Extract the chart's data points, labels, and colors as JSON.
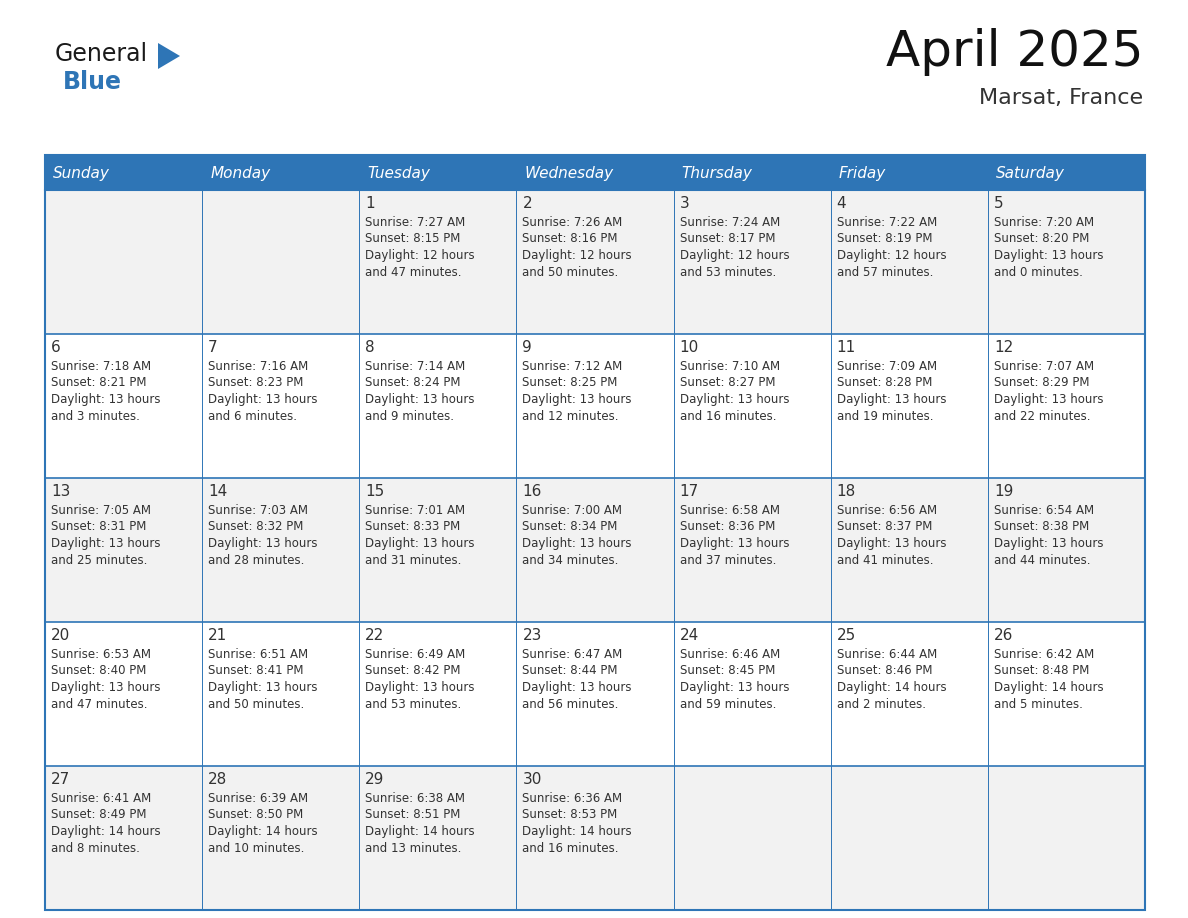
{
  "title": "April 2025",
  "subtitle": "Marsat, France",
  "header_color": "#2E75B6",
  "header_text_color": "#FFFFFF",
  "cell_bg_color": "#FFFFFF",
  "alt_row_color": "#F2F2F2",
  "cell_text_color": "#333333",
  "border_color": "#2E75B6",
  "thin_border_color": "#5B9BD5",
  "day_headers": [
    "Sunday",
    "Monday",
    "Tuesday",
    "Wednesday",
    "Thursday",
    "Friday",
    "Saturday"
  ],
  "weeks": [
    [
      {
        "day": "",
        "text": ""
      },
      {
        "day": "",
        "text": ""
      },
      {
        "day": "1",
        "text": "Sunrise: 7:27 AM\nSunset: 8:15 PM\nDaylight: 12 hours\nand 47 minutes."
      },
      {
        "day": "2",
        "text": "Sunrise: 7:26 AM\nSunset: 8:16 PM\nDaylight: 12 hours\nand 50 minutes."
      },
      {
        "day": "3",
        "text": "Sunrise: 7:24 AM\nSunset: 8:17 PM\nDaylight: 12 hours\nand 53 minutes."
      },
      {
        "day": "4",
        "text": "Sunrise: 7:22 AM\nSunset: 8:19 PM\nDaylight: 12 hours\nand 57 minutes."
      },
      {
        "day": "5",
        "text": "Sunrise: 7:20 AM\nSunset: 8:20 PM\nDaylight: 13 hours\nand 0 minutes."
      }
    ],
    [
      {
        "day": "6",
        "text": "Sunrise: 7:18 AM\nSunset: 8:21 PM\nDaylight: 13 hours\nand 3 minutes."
      },
      {
        "day": "7",
        "text": "Sunrise: 7:16 AM\nSunset: 8:23 PM\nDaylight: 13 hours\nand 6 minutes."
      },
      {
        "day": "8",
        "text": "Sunrise: 7:14 AM\nSunset: 8:24 PM\nDaylight: 13 hours\nand 9 minutes."
      },
      {
        "day": "9",
        "text": "Sunrise: 7:12 AM\nSunset: 8:25 PM\nDaylight: 13 hours\nand 12 minutes."
      },
      {
        "day": "10",
        "text": "Sunrise: 7:10 AM\nSunset: 8:27 PM\nDaylight: 13 hours\nand 16 minutes."
      },
      {
        "day": "11",
        "text": "Sunrise: 7:09 AM\nSunset: 8:28 PM\nDaylight: 13 hours\nand 19 minutes."
      },
      {
        "day": "12",
        "text": "Sunrise: 7:07 AM\nSunset: 8:29 PM\nDaylight: 13 hours\nand 22 minutes."
      }
    ],
    [
      {
        "day": "13",
        "text": "Sunrise: 7:05 AM\nSunset: 8:31 PM\nDaylight: 13 hours\nand 25 minutes."
      },
      {
        "day": "14",
        "text": "Sunrise: 7:03 AM\nSunset: 8:32 PM\nDaylight: 13 hours\nand 28 minutes."
      },
      {
        "day": "15",
        "text": "Sunrise: 7:01 AM\nSunset: 8:33 PM\nDaylight: 13 hours\nand 31 minutes."
      },
      {
        "day": "16",
        "text": "Sunrise: 7:00 AM\nSunset: 8:34 PM\nDaylight: 13 hours\nand 34 minutes."
      },
      {
        "day": "17",
        "text": "Sunrise: 6:58 AM\nSunset: 8:36 PM\nDaylight: 13 hours\nand 37 minutes."
      },
      {
        "day": "18",
        "text": "Sunrise: 6:56 AM\nSunset: 8:37 PM\nDaylight: 13 hours\nand 41 minutes."
      },
      {
        "day": "19",
        "text": "Sunrise: 6:54 AM\nSunset: 8:38 PM\nDaylight: 13 hours\nand 44 minutes."
      }
    ],
    [
      {
        "day": "20",
        "text": "Sunrise: 6:53 AM\nSunset: 8:40 PM\nDaylight: 13 hours\nand 47 minutes."
      },
      {
        "day": "21",
        "text": "Sunrise: 6:51 AM\nSunset: 8:41 PM\nDaylight: 13 hours\nand 50 minutes."
      },
      {
        "day": "22",
        "text": "Sunrise: 6:49 AM\nSunset: 8:42 PM\nDaylight: 13 hours\nand 53 minutes."
      },
      {
        "day": "23",
        "text": "Sunrise: 6:47 AM\nSunset: 8:44 PM\nDaylight: 13 hours\nand 56 minutes."
      },
      {
        "day": "24",
        "text": "Sunrise: 6:46 AM\nSunset: 8:45 PM\nDaylight: 13 hours\nand 59 minutes."
      },
      {
        "day": "25",
        "text": "Sunrise: 6:44 AM\nSunset: 8:46 PM\nDaylight: 14 hours\nand 2 minutes."
      },
      {
        "day": "26",
        "text": "Sunrise: 6:42 AM\nSunset: 8:48 PM\nDaylight: 14 hours\nand 5 minutes."
      }
    ],
    [
      {
        "day": "27",
        "text": "Sunrise: 6:41 AM\nSunset: 8:49 PM\nDaylight: 14 hours\nand 8 minutes."
      },
      {
        "day": "28",
        "text": "Sunrise: 6:39 AM\nSunset: 8:50 PM\nDaylight: 14 hours\nand 10 minutes."
      },
      {
        "day": "29",
        "text": "Sunrise: 6:38 AM\nSunset: 8:51 PM\nDaylight: 14 hours\nand 13 minutes."
      },
      {
        "day": "30",
        "text": "Sunrise: 6:36 AM\nSunset: 8:53 PM\nDaylight: 14 hours\nand 16 minutes."
      },
      {
        "day": "",
        "text": ""
      },
      {
        "day": "",
        "text": ""
      },
      {
        "day": "",
        "text": ""
      }
    ]
  ],
  "logo_text_general": "General",
  "logo_text_blue": "Blue",
  "logo_color_general": "#1a1a1a",
  "logo_color_blue": "#2E75B6",
  "logo_triangle_color": "#2E75B6",
  "title_fontsize": 36,
  "subtitle_fontsize": 16,
  "header_fontsize": 11,
  "day_num_fontsize": 11,
  "cell_text_fontsize": 8.5
}
